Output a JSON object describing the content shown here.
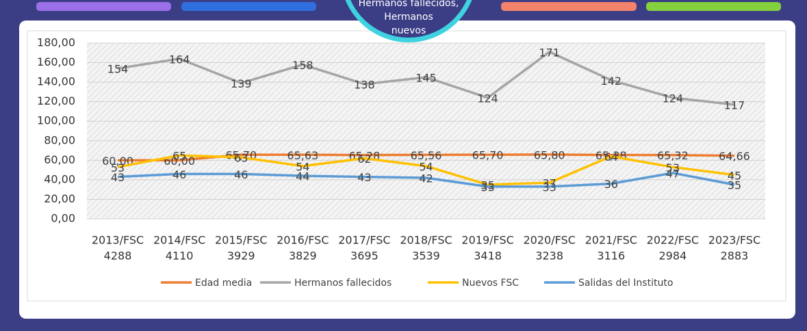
{
  "header": {
    "lines": [
      "Hermanos fallecidos,",
      "Hermanos",
      "nuevos"
    ]
  },
  "chart_data": {
    "type": "line",
    "categories": [
      [
        "2013/FSC",
        "4288"
      ],
      [
        "2014/FSC",
        "4110"
      ],
      [
        "2015/FSC",
        "3929"
      ],
      [
        "2016/FSC",
        "3829"
      ],
      [
        "2017/FSC",
        "3695"
      ],
      [
        "2018/FSC",
        "3539"
      ],
      [
        "2019/FSC",
        "3418"
      ],
      [
        "2020/FSC",
        "3238"
      ],
      [
        "2021/FSC",
        "3116"
      ],
      [
        "2022/FSC",
        "2984"
      ],
      [
        "2023/FSC",
        "2883"
      ]
    ],
    "series": [
      {
        "name": "Edad media",
        "color": "#ed7d31",
        "values": [
          60.0,
          60.0,
          65.7,
          65.63,
          65.28,
          65.56,
          65.7,
          65.8,
          65.38,
          65.32,
          64.66
        ],
        "value_labels": [
          "60,00",
          "60,00",
          "65,70",
          "65,63",
          "65,28",
          "65,56",
          "65,70",
          "65,80",
          "65,38",
          "65,32",
          "64,66"
        ]
      },
      {
        "name": "Hermanos fallecidos",
        "color": "#a5a5a5",
        "values": [
          154,
          164,
          139,
          158,
          138,
          145,
          124,
          171,
          142,
          124,
          117
        ]
      },
      {
        "name": "Nuevos FSC",
        "color": "#ffc000",
        "values": [
          53,
          65,
          63,
          54,
          62,
          54,
          35,
          37,
          64,
          53,
          45
        ]
      },
      {
        "name": "Salidas del Instituto",
        "color": "#5b9bd5",
        "values": [
          43,
          46,
          46,
          44,
          43,
          42,
          33,
          33,
          36,
          47,
          35
        ]
      }
    ],
    "ylim": [
      0,
      180
    ],
    "yticks": [
      {
        "value": 0,
        "label": "0,00"
      },
      {
        "value": 20,
        "label": "20,00"
      },
      {
        "value": 40,
        "label": "40,00"
      },
      {
        "value": 60,
        "label": "60,00"
      },
      {
        "value": 80,
        "label": "80,00"
      },
      {
        "value": 100,
        "label": "100,00"
      },
      {
        "value": 120,
        "label": "120,00"
      },
      {
        "value": 140,
        "label": "140,00"
      },
      {
        "value": 160,
        "label": "160,00"
      },
      {
        "value": 180,
        "label": "180,00"
      }
    ],
    "grid": true,
    "legend": "bottom"
  }
}
